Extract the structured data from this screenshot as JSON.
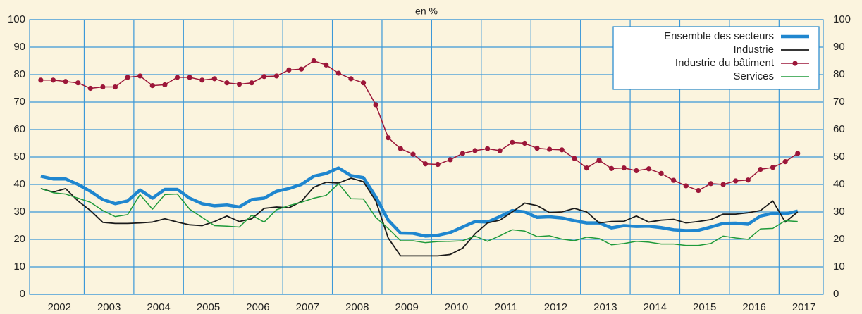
{
  "chart_data": {
    "type": "line",
    "subtitle": "en %",
    "x": [
      2002.125,
      2002.375,
      2002.625,
      2002.875,
      2003.125,
      2003.375,
      2003.625,
      2003.875,
      2004.125,
      2004.375,
      2004.625,
      2004.875,
      2005.125,
      2005.375,
      2005.625,
      2005.875,
      2006.125,
      2006.375,
      2006.625,
      2006.875,
      2007.125,
      2007.375,
      2007.625,
      2007.875,
      2008.125,
      2008.375,
      2008.625,
      2008.875,
      2009.125,
      2009.375,
      2009.625,
      2009.875,
      2010.125,
      2010.375,
      2010.625,
      2010.875,
      2011.125,
      2011.375,
      2011.625,
      2011.875,
      2012.125,
      2012.375,
      2012.625,
      2012.875,
      2013.125,
      2013.375,
      2013.625,
      2013.875,
      2014.125,
      2014.375,
      2014.625,
      2014.875,
      2015.125,
      2015.375,
      2015.625,
      2015.875,
      2016.125,
      2016.375,
      2016.625,
      2016.875,
      2017.125,
      2017.375
    ],
    "xlim": [
      2001.9,
      2017.89
    ],
    "xticks": [
      {
        "value": 2002.5,
        "label": "2002"
      },
      {
        "value": 2003.5,
        "label": "2003"
      },
      {
        "value": 2004.5,
        "label": "2004"
      },
      {
        "value": 2005.5,
        "label": "2005"
      },
      {
        "value": 2006.5,
        "label": "2006"
      },
      {
        "value": 2007.5,
        "label": "2007"
      },
      {
        "value": 2008.5,
        "label": "2008"
      },
      {
        "value": 2009.5,
        "label": "2009"
      },
      {
        "value": 2010.5,
        "label": "2010"
      },
      {
        "value": 2011.5,
        "label": "2011"
      },
      {
        "value": 2012.5,
        "label": "2012"
      },
      {
        "value": 2013.5,
        "label": "2013"
      },
      {
        "value": 2014.5,
        "label": "2014"
      },
      {
        "value": 2015.5,
        "label": "2015"
      },
      {
        "value": 2016.5,
        "label": "2016"
      },
      {
        "value": 2017.5,
        "label": "2017"
      }
    ],
    "xgrid": [
      2003,
      2004,
      2005,
      2006,
      2007,
      2008,
      2009,
      2010,
      2011,
      2012,
      2013,
      2014,
      2015,
      2016,
      2017
    ],
    "ylim": [
      0,
      100
    ],
    "yticks": [
      0,
      10,
      20,
      30,
      40,
      50,
      60,
      70,
      80,
      90,
      100
    ],
    "grid": true,
    "grid_color": "#3b98d8",
    "legend": "upper right",
    "series": [
      {
        "name": "Ensemble des secteurs",
        "color": "#1f86cf",
        "width": 4.5,
        "values": [
          43,
          42,
          42,
          40,
          37.5,
          34.5,
          33,
          34,
          38,
          35,
          38.2,
          38.2,
          35,
          33,
          32.2,
          32.5,
          31.8,
          34.5,
          35,
          37.5,
          38.5,
          40,
          43,
          44,
          46,
          43.2,
          42.5,
          35.5,
          27,
          22.3,
          22.2,
          21.2,
          21.5,
          22.5,
          24.5,
          26.5,
          26.3,
          28.3,
          30.5,
          30,
          28,
          28.2,
          27.8,
          26.8,
          26,
          26,
          24.2,
          25,
          24.7,
          24.8,
          24.3,
          23.5,
          23.2,
          23.3,
          24.5,
          25.8,
          25.9,
          25.5,
          28.5,
          29.5,
          29.3,
          30.3
        ]
      },
      {
        "name": "Industrie",
        "color": "#1a1a1a",
        "width": 1.8,
        "values": [
          38.5,
          37.2,
          38.5,
          34,
          30.5,
          26.2,
          25.8,
          25.8,
          26,
          26.3,
          27.5,
          26.3,
          25.3,
          25,
          26.5,
          28.5,
          26.5,
          27.5,
          31.3,
          31.8,
          31.5,
          33.8,
          39,
          40.8,
          40.5,
          42.3,
          41,
          34,
          20.5,
          14,
          14,
          14,
          14,
          14.5,
          16.8,
          22,
          26,
          27,
          30,
          33.2,
          32.3,
          29.8,
          30,
          31.3,
          30,
          26,
          26.5,
          26.6,
          28.5,
          26.3,
          27,
          27.3,
          26,
          26.5,
          27.2,
          29.2,
          29.2,
          29.7,
          30.5,
          34,
          26.3,
          30
        ]
      },
      {
        "name": "Industrie du bâtiment",
        "color": "#9c1639",
        "width": 1.5,
        "marker": "circle",
        "values": [
          78,
          78,
          77.5,
          77,
          75,
          75.5,
          75.5,
          79,
          79.5,
          76,
          76.3,
          79,
          79,
          78,
          78.5,
          77,
          76.5,
          77,
          79.3,
          79.5,
          81.7,
          82,
          85,
          83.5,
          80.5,
          78.5,
          77,
          69,
          57,
          53,
          51,
          47.5,
          47.3,
          49,
          51.3,
          52.3,
          53,
          52.3,
          55.3,
          55,
          53.2,
          52.8,
          52.6,
          49.5,
          46,
          48.8,
          45.8,
          46,
          45,
          45.7,
          44,
          41.5,
          39.5,
          37.8,
          40.3,
          40,
          41.3,
          41.6,
          45.5,
          46.2,
          48.3,
          51.3
        ]
      },
      {
        "name": "Services",
        "color": "#1f9a3a",
        "width": 1.5,
        "values": [
          38.5,
          37,
          36.5,
          35,
          33.5,
          30.5,
          28.3,
          29,
          36.3,
          31,
          36.3,
          36.5,
          31,
          28,
          25,
          24.8,
          24.5,
          28.8,
          26.3,
          30.8,
          32.3,
          33.5,
          35,
          36,
          40.3,
          34.8,
          34.7,
          28,
          24,
          19.5,
          19.5,
          18.8,
          19.2,
          19.3,
          19.5,
          21.2,
          19.3,
          21.3,
          23.5,
          23,
          21,
          21.3,
          20.1,
          19.5,
          20.8,
          20.3,
          18,
          18.5,
          19.3,
          19,
          18.3,
          18.3,
          17.8,
          17.8,
          18.5,
          21.2,
          20.5,
          20,
          23.8,
          24,
          26.8,
          26.5
        ]
      }
    ]
  }
}
